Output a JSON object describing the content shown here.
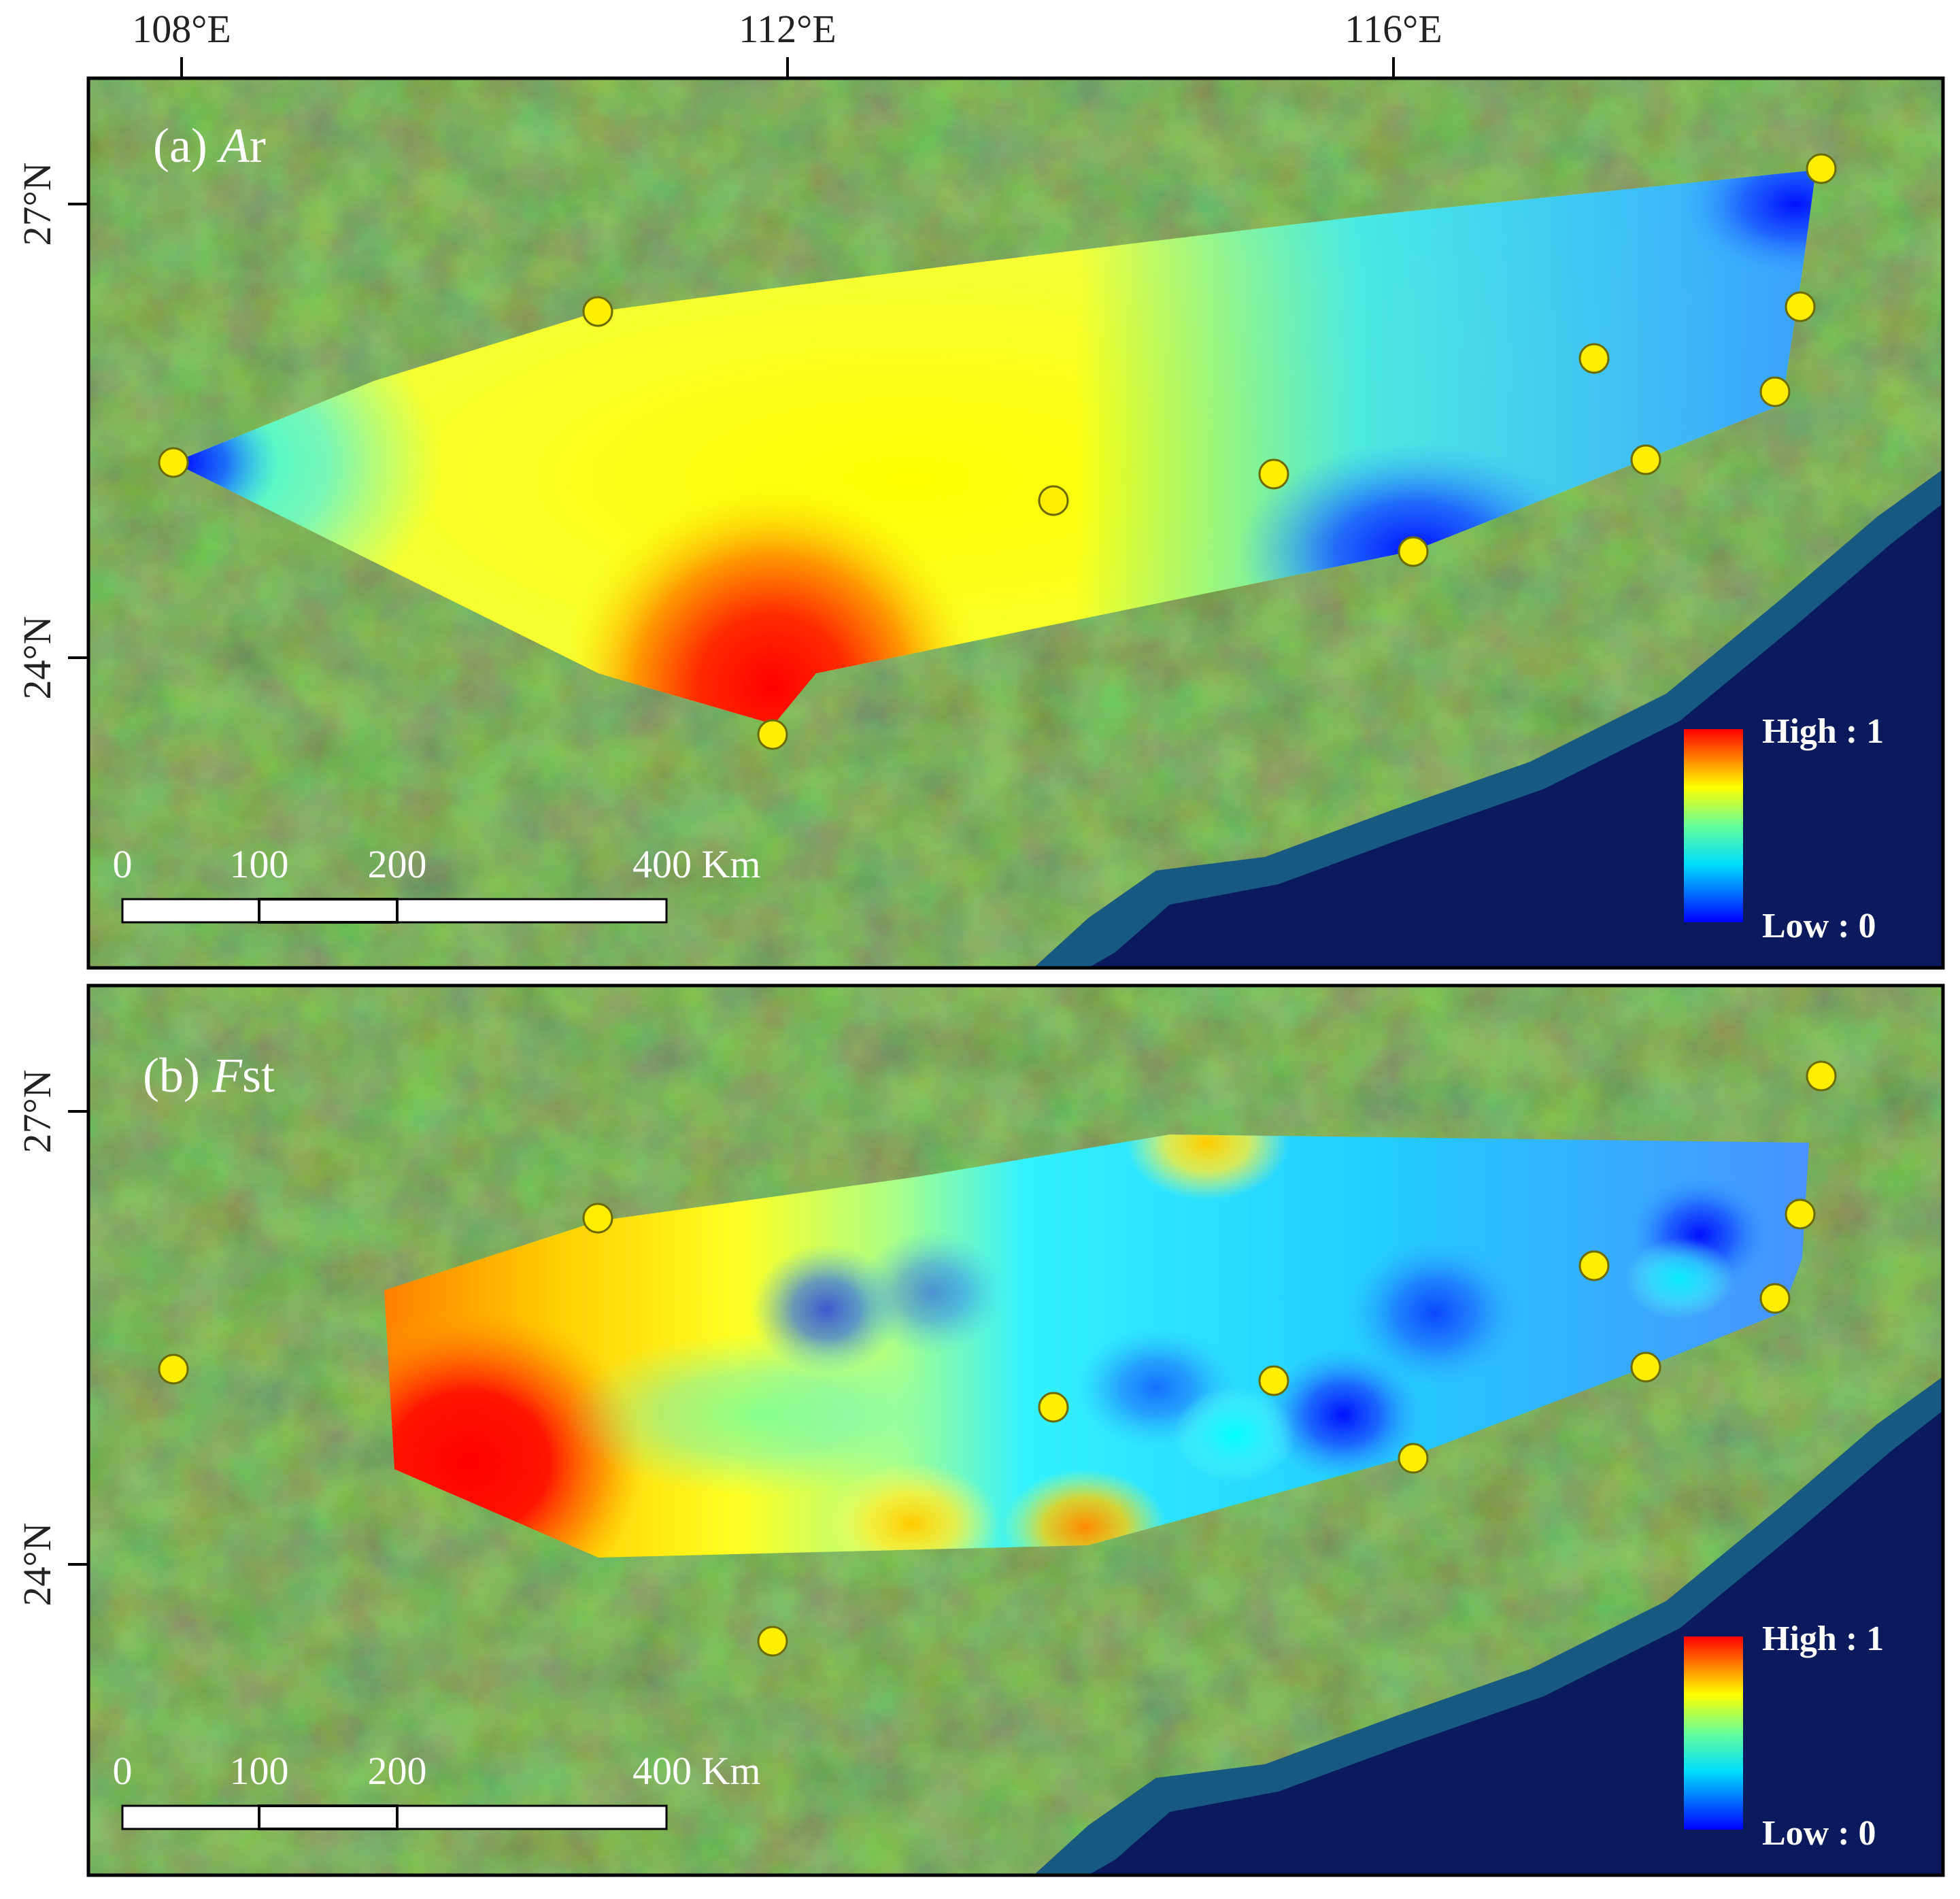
{
  "axes": {
    "lon_ticks": [
      "108°E",
      "112°E",
      "116°E"
    ],
    "lat_ticks": [
      "27°N",
      "24°N"
    ]
  },
  "panels": [
    {
      "id": "a",
      "title_prefix": "(a) ",
      "title_var": "A",
      "title_suffix": "r",
      "legend": {
        "high": "High : 1",
        "low": "Low : 0"
      },
      "scale_bar": {
        "labels": [
          "0",
          "100",
          "200",
          "400 Km"
        ]
      }
    },
    {
      "id": "b",
      "title_prefix": "(b) ",
      "title_var": "F",
      "title_suffix": "st",
      "legend": {
        "high": "High : 1",
        "low": "Low : 0"
      },
      "scale_bar": {
        "labels": [
          "0",
          "100",
          "200",
          "400 Km"
        ]
      }
    }
  ],
  "colors": {
    "land": "#4e7d2a",
    "sea": "#0a1a5c",
    "site_marker": "#ffee00",
    "ramp": [
      "#0000ff",
      "#00ffff",
      "#ffff00",
      "#ff0000"
    ]
  },
  "icons": {
    "sampling_site": "yellow-circle-icon"
  }
}
